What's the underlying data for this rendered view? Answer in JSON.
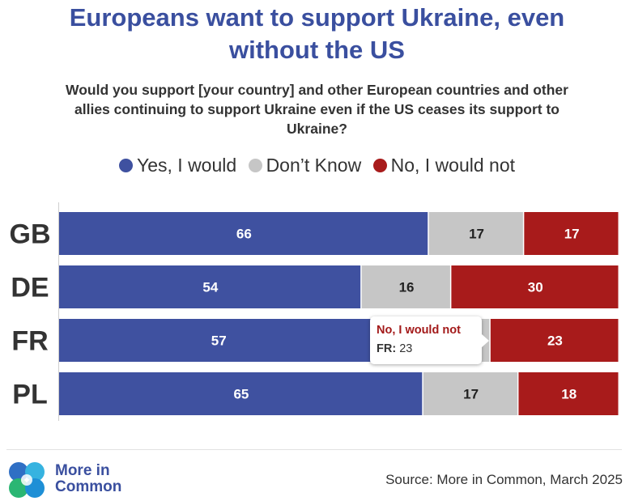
{
  "header": {
    "title_line1": "Europeans want to support Ukraine, even",
    "title_line2": "without the US",
    "subtitle_line1": "Would you support [your country] and other European countries and other",
    "subtitle_line2": "allies continuing to support Ukraine even if the US ceases its support to",
    "subtitle_line3": "Ukraine?"
  },
  "legend": [
    {
      "label": "Yes, I would",
      "color": "#3f51a0"
    },
    {
      "label": "Don’t Know",
      "color": "#c6c6c6"
    },
    {
      "label": "No, I would not",
      "color": "#a81b1b"
    }
  ],
  "chart_data": {
    "type": "bar",
    "orientation": "horizontal",
    "stacked": true,
    "categories": [
      "GB",
      "DE",
      "FR",
      "PL"
    ],
    "series": [
      {
        "name": "Yes, I would",
        "values": [
          66,
          54,
          57,
          65
        ],
        "color": "#3f51a0"
      },
      {
        "name": "Don’t Know",
        "values": [
          17,
          16,
          20,
          17
        ],
        "color": "#c6c6c6"
      },
      {
        "name": "No, I would not",
        "values": [
          17,
          30,
          23,
          18
        ],
        "color": "#a81b1b"
      }
    ],
    "title": "Europeans want to support Ukraine, even without the US",
    "xlabel": "",
    "ylabel": "",
    "xlim": [
      0,
      100
    ]
  },
  "tooltip": {
    "series": "No, I would not",
    "category_label": "FR:",
    "value": "23"
  },
  "footer": {
    "logo_line1": "More in",
    "logo_line2": "Common",
    "source": "Source: More in Common, March 2025"
  }
}
